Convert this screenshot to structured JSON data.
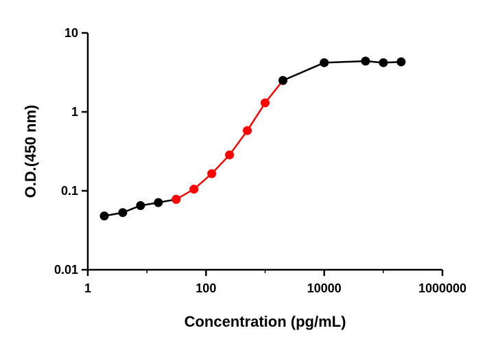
{
  "chart_data": {
    "type": "line",
    "xscale": "log",
    "yscale": "log",
    "xlabel": "Concentration (pg/mL)",
    "ylabel": "O.D.(450 nm)",
    "xlim": [
      1,
      1000000
    ],
    "ylim": [
      0.01,
      10
    ],
    "x_ticks": [
      1,
      100,
      10000,
      1000000
    ],
    "x_tick_labels": [
      "1",
      "100",
      "10000",
      "1000000"
    ],
    "y_ticks": [
      0.01,
      0.1,
      1,
      10
    ],
    "y_tick_labels": [
      "0.01",
      "0.1",
      "1",
      "10"
    ],
    "grid": false,
    "legend": "none",
    "series": [
      {
        "color": "#000000",
        "points": [
          {
            "x": 1.9,
            "y": 0.048
          },
          {
            "x": 3.9,
            "y": 0.053
          },
          {
            "x": 7.8,
            "y": 0.065
          },
          {
            "x": 15.6,
            "y": 0.071
          },
          {
            "x": 31.25,
            "y": 0.078
          }
        ]
      },
      {
        "color": "#ff0000",
        "points": [
          {
            "x": 31.25,
            "y": 0.078
          },
          {
            "x": 62.5,
            "y": 0.105
          },
          {
            "x": 125,
            "y": 0.165
          },
          {
            "x": 250,
            "y": 0.285
          },
          {
            "x": 500,
            "y": 0.58
          },
          {
            "x": 1000,
            "y": 1.3
          },
          {
            "x": 2000,
            "y": 2.5
          }
        ]
      },
      {
        "color": "#000000",
        "points": [
          {
            "x": 2000,
            "y": 2.5
          },
          {
            "x": 10000,
            "y": 4.2
          },
          {
            "x": 50000,
            "y": 4.4
          },
          {
            "x": 100000,
            "y": 4.2
          },
          {
            "x": 200000,
            "y": 4.3
          }
        ]
      }
    ]
  }
}
